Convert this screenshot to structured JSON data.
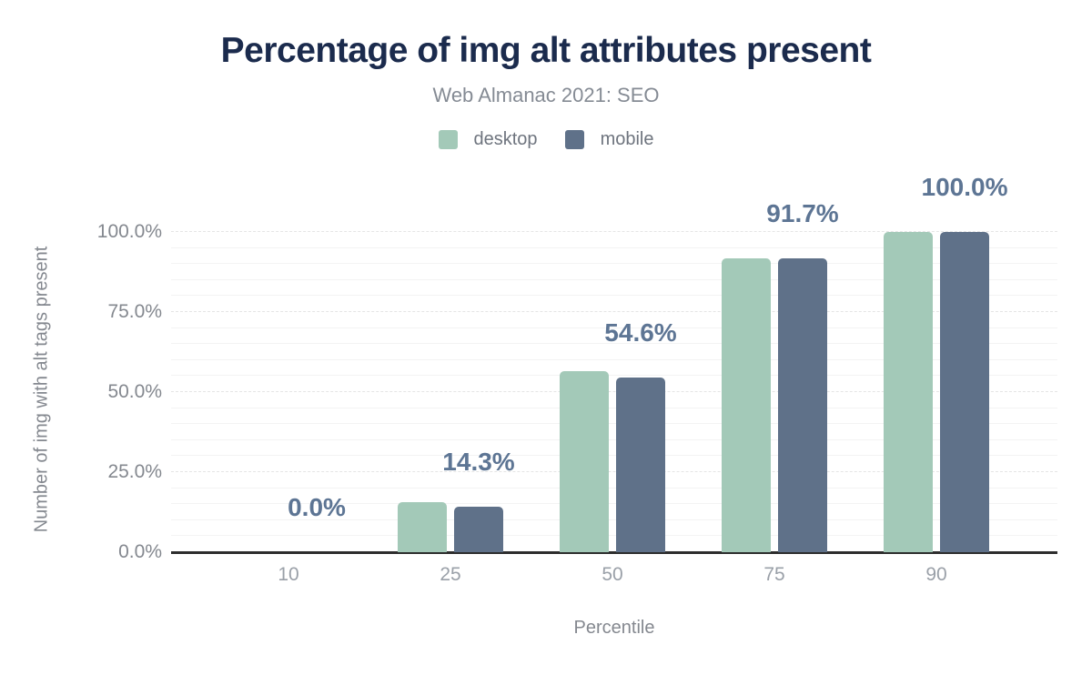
{
  "header": {
    "title": "Percentage of img alt attributes present",
    "subtitle": "Web Almanac 2021: SEO"
  },
  "legend": {
    "items": [
      {
        "label": "desktop",
        "color": "#a3c9b8"
      },
      {
        "label": "mobile",
        "color": "#5f7189"
      }
    ]
  },
  "chart_data": {
    "type": "bar",
    "title": "Percentage of img alt attributes present",
    "subtitle": "Web Almanac 2021: SEO",
    "xlabel": "Percentile",
    "ylabel": "Number of img with alt tags present",
    "categories": [
      "10",
      "25",
      "50",
      "75",
      "90"
    ],
    "series": [
      {
        "name": "desktop",
        "color": "#a3c9b8",
        "values": [
          0.0,
          15.6,
          56.5,
          91.9,
          100.0
        ]
      },
      {
        "name": "mobile",
        "color": "#5f7189",
        "values": [
          0.0,
          14.3,
          54.6,
          91.7,
          100.0
        ]
      }
    ],
    "value_labels": [
      "0.0%",
      "14.3%",
      "54.6%",
      "91.7%",
      "100.0%"
    ],
    "value_labels_series": "mobile",
    "ylim": [
      0,
      100
    ],
    "yticks": [
      {
        "pct": 0,
        "label": "0.0%"
      },
      {
        "pct": 25,
        "label": "25.0%"
      },
      {
        "pct": 50,
        "label": "50.0%"
      },
      {
        "pct": 75,
        "label": "75.0%"
      },
      {
        "pct": 100,
        "label": "100.0%"
      }
    ],
    "grid": {
      "minor_step_pct": 5,
      "major_step_pct": 25,
      "orientation": "horizontal"
    },
    "legend_position": "top"
  },
  "colors": {
    "title": "#1b2b4d",
    "subtitle": "#858b94",
    "value_label": "#5d7594",
    "axis_text": "#84888f",
    "x_tick_text": "#9aa0a8",
    "axis_line": "#2d2d2d",
    "background": "#ffffff"
  }
}
